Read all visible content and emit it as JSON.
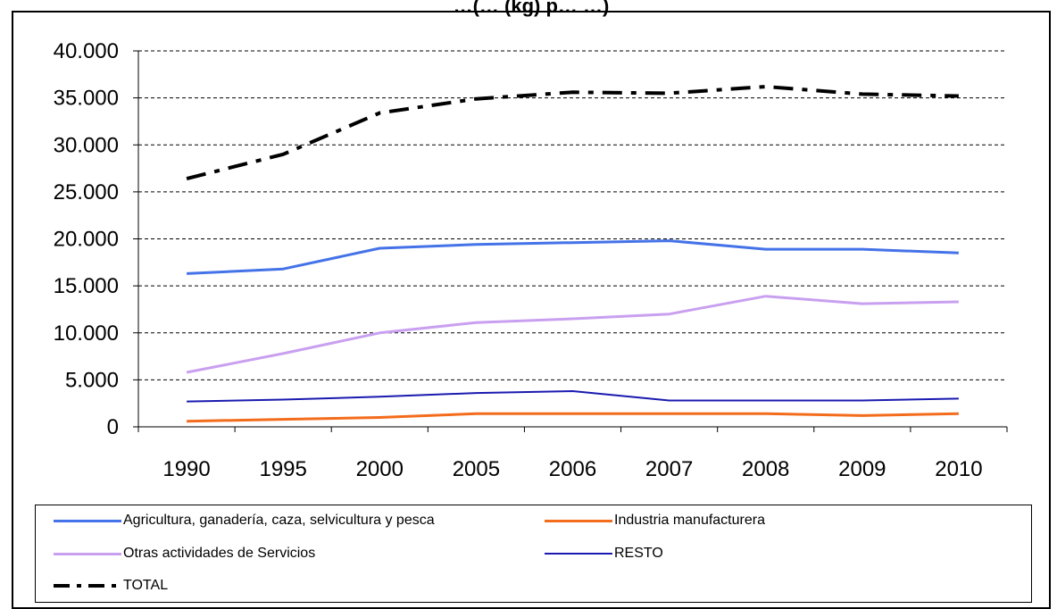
{
  "chart_data": {
    "type": "line",
    "title": "…(… (kg) p… …)",
    "categories": [
      "1990",
      "1995",
      "2000",
      "2005",
      "2006",
      "2007",
      "2008",
      "2009",
      "2010"
    ],
    "ylim": [
      0,
      40000
    ],
    "yticks": [
      0,
      5000,
      10000,
      15000,
      20000,
      25000,
      30000,
      35000,
      40000
    ],
    "ytick_labels": [
      "0",
      "5.000",
      "10.000",
      "15.000",
      "20.000",
      "25.000",
      "30.000",
      "35.000",
      "40.000"
    ],
    "grid": true,
    "legend_position": "bottom",
    "series": [
      {
        "name": "Agricultura, ganadería, caza, selvicultura y pesca",
        "color": "#4472E8",
        "style": "solid",
        "values": [
          16300,
          16800,
          19000,
          19400,
          19600,
          19800,
          18900,
          18900,
          18500
        ]
      },
      {
        "name": "Industria manufacturera",
        "color": "#F36C1B",
        "style": "solid",
        "values": [
          600,
          800,
          1000,
          1400,
          1400,
          1400,
          1400,
          1200,
          1400
        ]
      },
      {
        "name": "Otras actividades de Servicios",
        "color": "#C9A0F0",
        "style": "solid",
        "values": [
          5800,
          7800,
          10000,
          11100,
          11500,
          12000,
          13900,
          13100,
          13300
        ]
      },
      {
        "name": "RESTO",
        "color": "#1A1AB0",
        "style": "thin",
        "values": [
          2700,
          2900,
          3200,
          3600,
          3800,
          2800,
          2800,
          2800,
          3000
        ]
      },
      {
        "name": "TOTAL",
        "color": "#000000",
        "style": "dashdot",
        "values": [
          26400,
          29000,
          33400,
          34900,
          35600,
          35500,
          36200,
          35400,
          35200
        ]
      }
    ]
  }
}
